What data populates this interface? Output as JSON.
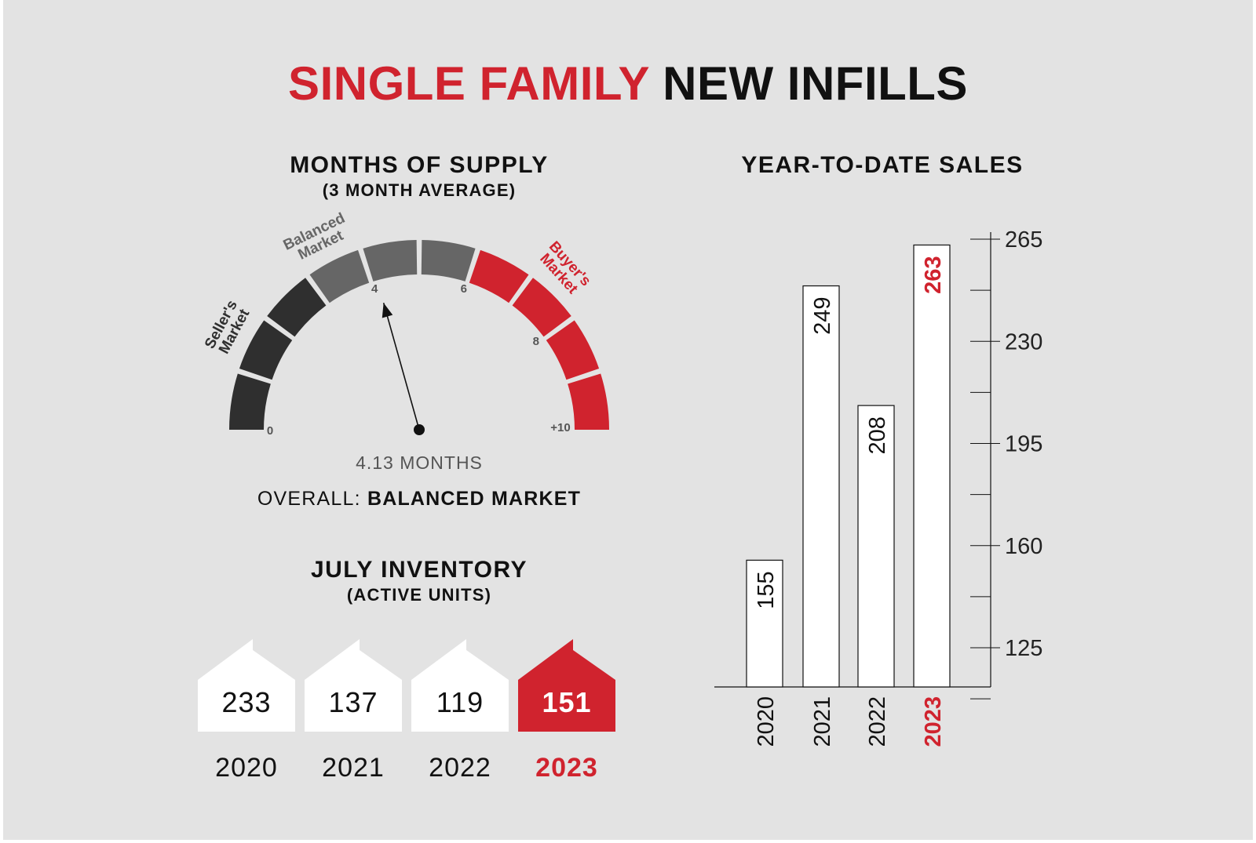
{
  "title": {
    "part1": "SINGLE FAMILY",
    "part2": "NEW INFILLS"
  },
  "colors": {
    "accent": "#d0232e",
    "dark": "#2f2f2f",
    "mid": "#666666",
    "background": "#e3e3e3"
  },
  "supply": {
    "heading": "MONTHS OF SUPPLY",
    "subheading": "(3 MONTH AVERAGE)",
    "labels": {
      "seller": "Seller's Market",
      "balanced": "Balanced Market",
      "buyer": "Buyer's Market"
    },
    "ticks": [
      "0",
      "4",
      "6",
      "8",
      "+10"
    ],
    "value": 4.13,
    "readout": "4.13 MONTHS",
    "overall_prefix": "OVERALL:",
    "overall_value": "BALANCED MARKET"
  },
  "inventory": {
    "heading": "JULY INVENTORY",
    "subheading": "(ACTIVE UNITS)",
    "items": [
      {
        "value": "233",
        "year": "2020",
        "highlight": false
      },
      {
        "value": "137",
        "year": "2021",
        "highlight": false
      },
      {
        "value": "119",
        "year": "2022",
        "highlight": false
      },
      {
        "value": "151",
        "year": "2023",
        "highlight": true
      }
    ]
  },
  "ytd": {
    "heading": "YEAR-TO-DATE SALES"
  },
  "chart_data": {
    "type": "bar",
    "title": "YEAR-TO-DATE SALES",
    "categories": [
      "2020",
      "2021",
      "2022",
      "2023"
    ],
    "values": [
      155,
      249,
      208,
      263
    ],
    "highlight_index": 3,
    "yticks": [
      125,
      160,
      195,
      230,
      265
    ],
    "ylim": [
      110,
      265
    ],
    "axis_position": "right",
    "bar_orientation": "vertical",
    "value_labels": "rotated-inside-bar"
  }
}
